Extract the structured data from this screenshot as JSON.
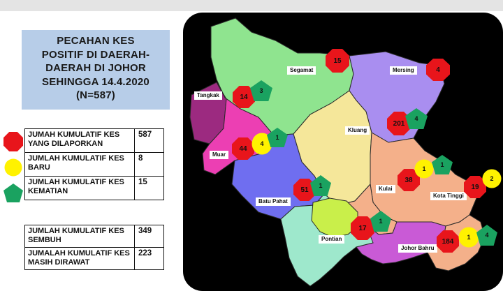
{
  "title": {
    "lines": [
      "PECAHAN KES",
      "POSITIF DI DAERAH-",
      "DAERAH DI JOHOR",
      "SEHINGGA 14.4.2020",
      "(N=587)"
    ]
  },
  "legend": [
    {
      "label": "JUMAH KUMULATIF KES YANG DILAPORKAN",
      "value": "587",
      "icon": "red-octagon-icon"
    },
    {
      "label": "JUMLAH KUMULATIF KES BARU",
      "value": "8",
      "icon": "yellow-circle-icon"
    },
    {
      "label": "JUMLAH KUMULATIF KES KEMATIAN",
      "value": "15",
      "icon": "green-pentagon-icon"
    }
  ],
  "summary": [
    {
      "label": "JUMLAH KUMULATIF KES SEMBUH",
      "value": "349"
    },
    {
      "label": "JUMALAH KUMULATIF KES MASIH DIRAWAT",
      "value": "223"
    }
  ],
  "colors": {
    "reported": "#e8151b",
    "new": "#fff200",
    "deaths": "#1aa260",
    "title_bg": "#b7cde8",
    "map_bg": "#000000"
  },
  "districts": {
    "segamat": {
      "name": "Segamat",
      "reported": "15"
    },
    "mersing": {
      "name": "Mersing",
      "reported": "4"
    },
    "tangkak": {
      "name": "Tangkak",
      "reported": "14",
      "deaths": "3"
    },
    "kluang": {
      "name": "Kluang",
      "reported": "201",
      "deaths": "4"
    },
    "muar": {
      "name": "Muar",
      "reported": "44",
      "new": "4",
      "deaths": "1"
    },
    "batu_pahat": {
      "name": "Batu Pahat",
      "reported": "51",
      "deaths": "1"
    },
    "kulai": {
      "name": "Kulai",
      "reported": "38",
      "new": "1",
      "deaths": "1"
    },
    "kota_tinggi": {
      "name": "Kota Tinggi",
      "reported": "19",
      "new": "2"
    },
    "pontian": {
      "name": "Pontian",
      "reported": "17",
      "deaths": "1"
    },
    "johor_bahru": {
      "name": "Johor Bahru",
      "reported": "184",
      "new": "1",
      "deaths": "4"
    }
  }
}
